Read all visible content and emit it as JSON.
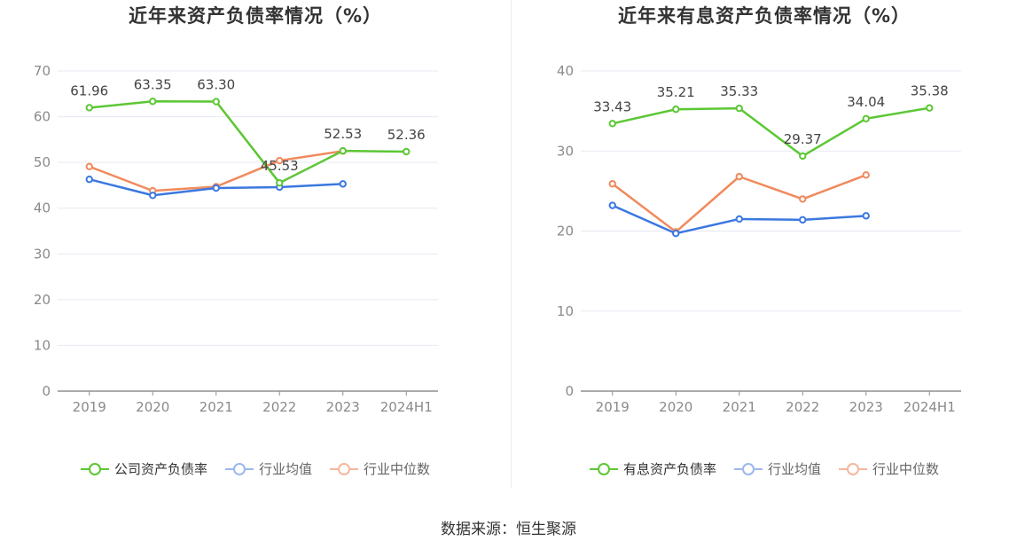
{
  "source_text": "数据来源：恒生聚源",
  "legend_colors": [
    "#5cc734",
    "#3b78e0",
    "#f08a5d"
  ],
  "legend_inactive_colors": [
    "#5cc734",
    "#9bb8ee",
    "#f5b79c"
  ],
  "chart_data": [
    {
      "type": "line",
      "title": "近年来资产负债率情况（%）",
      "categories": [
        "2019",
        "2020",
        "2021",
        "2022",
        "2023",
        "2024H1"
      ],
      "ylim": [
        0,
        70
      ],
      "yticks": [
        0,
        10,
        20,
        30,
        40,
        50,
        60,
        70
      ],
      "grid": true,
      "legend_position": "bottom",
      "series": [
        {
          "name": "公司资产负债率",
          "values": [
            61.96,
            63.35,
            63.3,
            45.53,
            52.53,
            52.36
          ],
          "labels": [
            "61.96",
            "63.35",
            "63.30",
            "45.53",
            "52.53",
            "52.36"
          ]
        },
        {
          "name": "行业均值",
          "values": [
            46.3,
            42.8,
            44.4,
            44.6,
            45.3,
            null
          ]
        },
        {
          "name": "行业中位数",
          "values": [
            49.1,
            43.8,
            44.7,
            50.4,
            52.5,
            null
          ]
        }
      ]
    },
    {
      "type": "line",
      "title": "近年来有息资产负债率情况（%）",
      "categories": [
        "2019",
        "2020",
        "2021",
        "2022",
        "2023",
        "2024H1"
      ],
      "ylim": [
        0,
        40
      ],
      "yticks": [
        0,
        10,
        20,
        30,
        40
      ],
      "grid": true,
      "legend_position": "bottom",
      "series": [
        {
          "name": "有息资产负债率",
          "values": [
            33.43,
            35.21,
            35.33,
            29.37,
            34.04,
            35.38
          ],
          "labels": [
            "33.43",
            "35.21",
            "35.33",
            "29.37",
            "34.04",
            "35.38"
          ]
        },
        {
          "name": "行业均值",
          "values": [
            23.2,
            19.7,
            21.5,
            21.4,
            21.9,
            null
          ]
        },
        {
          "name": "行业中位数",
          "values": [
            25.9,
            19.9,
            26.8,
            24.0,
            27.0,
            null
          ]
        }
      ]
    }
  ]
}
